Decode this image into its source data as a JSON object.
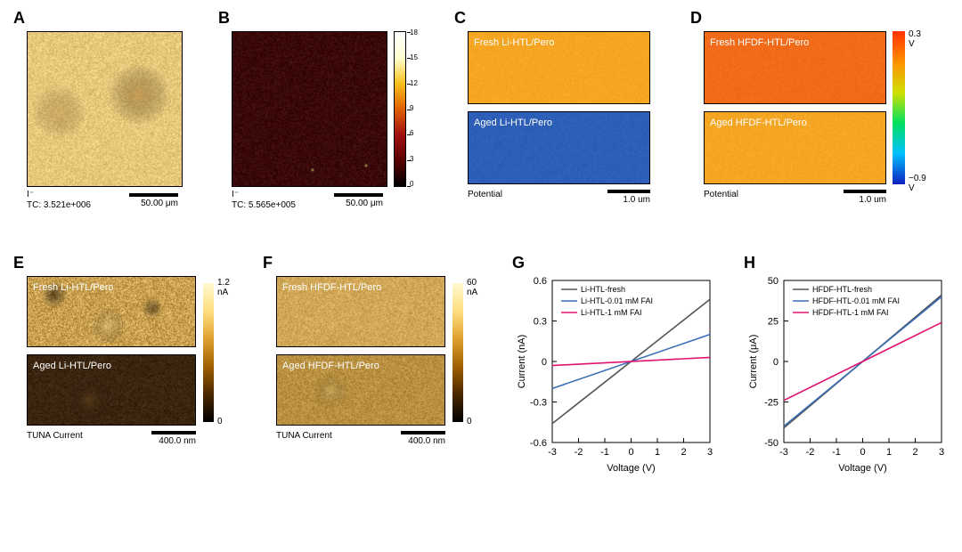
{
  "labels": {
    "A": "A",
    "B": "B",
    "C": "C",
    "D": "D",
    "E": "E",
    "F": "F",
    "G": "G",
    "H": "H"
  },
  "panelA": {
    "tc": "TC: 3.521e+006",
    "ion": "I⁻",
    "scalebar": "50.00 μm",
    "bg": "#e8c87a",
    "blob": "#c99a4a"
  },
  "panelB": {
    "tc": "TC: 5.565e+005",
    "ion": "I⁻",
    "scalebar": "50.00 μm",
    "bg": "#3a0808",
    "speck": "#f8e070",
    "colorbar_ticks": [
      "0",
      "3",
      "6",
      "9",
      "12",
      "15",
      "18"
    ],
    "cb_gradient": [
      "#000000",
      "#5a0000",
      "#a01010",
      "#e06000",
      "#f8c020",
      "#ffffd0",
      "#ffffff"
    ]
  },
  "panelC": {
    "top": "Fresh Li-HTL/Pero",
    "bottom": "Aged Li-HTL/Pero",
    "caption": "Potential",
    "scalebar": "1.0 um",
    "top_color": "#f5a623",
    "bottom_color": "#2d5fb8"
  },
  "panelD": {
    "top": "Fresh HFDF-HTL/Pero",
    "bottom": "Aged HFDF-HTL/Pero",
    "caption": "Potential",
    "scalebar": "1.0 um",
    "top_color": "#f26b1a",
    "bottom_color": "#f5a623",
    "cb_high": "0.3 V",
    "cb_low": "−0.9 V",
    "cb_gradient": [
      "#1020c0",
      "#00c0ff",
      "#00e060",
      "#d0e000",
      "#ff9000",
      "#ff3000"
    ]
  },
  "panelE": {
    "top": "Fresh Li-HTL/Pero",
    "bottom": "Aged Li-HTL/Pero",
    "caption": "TUNA Current",
    "scalebar": "400.0 nm",
    "cb_high": "1.2 nA",
    "cb_low": "0",
    "top_bg": "#c8a050",
    "bottom_bg": "#3a2510",
    "cb_gradient": [
      "#000000",
      "#4a2800",
      "#a06000",
      "#e0a030",
      "#ffe080",
      "#fff8d0"
    ]
  },
  "panelF": {
    "top": "Fresh HFDF-HTL/Pero",
    "bottom": "Aged HFDF-HTL/Pero",
    "caption": "TUNA Current",
    "scalebar": "400.0 nm",
    "cb_high": "60 nA",
    "cb_low": "0",
    "top_bg": "#d0a858",
    "bottom_bg": "#b89040",
    "cb_gradient": [
      "#000000",
      "#4a2800",
      "#a06000",
      "#e0a030",
      "#ffe080",
      "#fff8d0"
    ]
  },
  "panelG": {
    "xlabel": "Voltage (V)",
    "ylabel": "Current (nA)",
    "xlim": [
      -3,
      3
    ],
    "ylim": [
      -0.6,
      0.6
    ],
    "xticks": [
      -3,
      -2,
      -1,
      0,
      1,
      2,
      3
    ],
    "yticks": [
      -0.6,
      -0.3,
      0,
      0.3,
      0.6
    ],
    "fontsize": 11,
    "series": [
      {
        "name": "Li-HTL-fresh",
        "color": "#555555",
        "points": [
          [
            -3,
            -0.46
          ],
          [
            3,
            0.46
          ]
        ]
      },
      {
        "name": "Li-HTL-0.01 mM FAI",
        "color": "#3a6fb8",
        "points": [
          [
            -3,
            -0.2
          ],
          [
            3,
            0.2
          ]
        ]
      },
      {
        "name": "Li-HTL-1 mM FAI",
        "color": "#e0126e",
        "points": [
          [
            -3,
            -0.03
          ],
          [
            3,
            0.03
          ]
        ]
      }
    ]
  },
  "panelH": {
    "xlabel": "Voltage (V)",
    "ylabel": "Current (μA)",
    "xlim": [
      -3,
      3
    ],
    "ylim": [
      -50,
      50
    ],
    "xticks": [
      -3,
      -2,
      -1,
      0,
      1,
      2,
      3
    ],
    "yticks": [
      -50,
      -25,
      0,
      25,
      50
    ],
    "fontsize": 11,
    "series": [
      {
        "name": "HFDF-HTL-fresh",
        "color": "#555555",
        "points": [
          [
            -3,
            -41
          ],
          [
            3,
            41
          ]
        ]
      },
      {
        "name": "HFDF-HTL-0.01 mM FAI",
        "color": "#3a6fb8",
        "points": [
          [
            -3,
            -40
          ],
          [
            3,
            40
          ]
        ]
      },
      {
        "name": "HFDF-HTL-1 mM FAI",
        "color": "#e0126e",
        "points": [
          [
            -3,
            -24
          ],
          [
            3,
            24
          ]
        ]
      }
    ]
  }
}
